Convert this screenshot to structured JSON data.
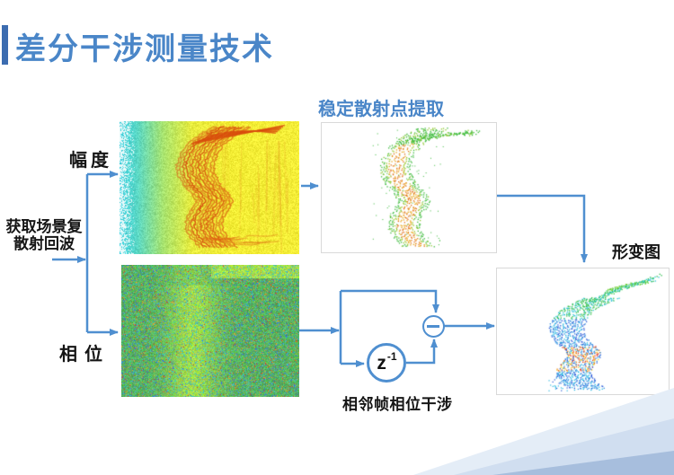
{
  "slide": {
    "title": "差分干涉测量技术"
  },
  "labels": {
    "input_line1": "获取场景复",
    "input_line2": "散射回波",
    "amplitude": "幅度",
    "phase": "相位",
    "stable_extraction": "稳定散射点提取",
    "deformation_map": "形变图",
    "interferometry": "相邻帧相位干涉"
  },
  "block_diagram": {
    "delay_block": {
      "base": "z",
      "exponent": "-1"
    },
    "subtract_symbol": "−"
  },
  "colors": {
    "accent_blue": "#4f8fd0",
    "title_blue": "#4a86c8",
    "title_bar_blue": "#3c6cb0",
    "label_black": "#151515",
    "image_border": "#d9d9d9",
    "decoration_light": "#e4edf7",
    "decoration_mid": "#cddcee",
    "decoration_dark": "#a7bedd"
  }
}
